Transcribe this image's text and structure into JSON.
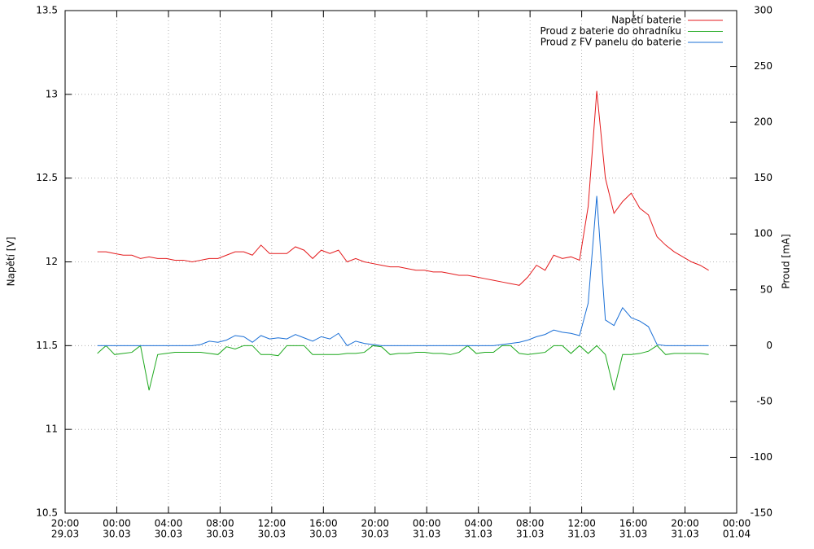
{
  "chart_data": {
    "type": "line",
    "ylabel": "Napětí [V]",
    "y2label": "Proud [mA]",
    "xlim": [
      "29.03 20:00",
      "01.04 00:00"
    ],
    "xticks": [
      {
        "value": "29.03 20:00",
        "label": [
          "20:00",
          "29.03"
        ]
      },
      {
        "value": "30.03 00:00",
        "label": [
          "00:00",
          "30.03"
        ]
      },
      {
        "value": "30.03 04:00",
        "label": [
          "04:00",
          "30.03"
        ]
      },
      {
        "value": "30.03 08:00",
        "label": [
          "08:00",
          "30.03"
        ]
      },
      {
        "value": "30.03 12:00",
        "label": [
          "12:00",
          "30.03"
        ]
      },
      {
        "value": "30.03 16:00",
        "label": [
          "16:00",
          "30.03"
        ]
      },
      {
        "value": "30.03 20:00",
        "label": [
          "20:00",
          "30.03"
        ]
      },
      {
        "value": "31.03 00:00",
        "label": [
          "00:00",
          "31.03"
        ]
      },
      {
        "value": "31.03 04:00",
        "label": [
          "04:00",
          "31.03"
        ]
      },
      {
        "value": "31.03 08:00",
        "label": [
          "08:00",
          "31.03"
        ]
      },
      {
        "value": "31.03 12:00",
        "label": [
          "12:00",
          "31.03"
        ]
      },
      {
        "value": "31.03 16:00",
        "label": [
          "16:00",
          "31.03"
        ]
      },
      {
        "value": "31.03 20:00",
        "label": [
          "20:00",
          "31.03"
        ]
      },
      {
        "value": "01.04 00:00",
        "label": [
          "00:00",
          "01.04"
        ]
      }
    ],
    "ylim": [
      10.5,
      13.5
    ],
    "yticks": [
      10.5,
      11,
      11.5,
      12,
      12.5,
      13,
      13.5
    ],
    "y2lim": [
      -150,
      300
    ],
    "y2ticks": [
      -150,
      -100,
      -50,
      0,
      50,
      100,
      150,
      200,
      250,
      300
    ],
    "grid": true,
    "x": [
      "29.03 22:30",
      "29.03 23:10",
      "29.03 23:50",
      "30.03 00:30",
      "30.03 01:10",
      "30.03 01:50",
      "30.03 02:30",
      "30.03 03:10",
      "30.03 03:50",
      "30.03 04:30",
      "30.03 05:10",
      "30.03 05:50",
      "30.03 06:30",
      "30.03 07:10",
      "30.03 07:50",
      "30.03 08:30",
      "30.03 09:10",
      "30.03 09:50",
      "30.03 10:30",
      "30.03 11:10",
      "30.03 11:50",
      "30.03 12:30",
      "30.03 13:10",
      "30.03 13:50",
      "30.03 14:30",
      "30.03 15:10",
      "30.03 15:50",
      "30.03 16:30",
      "30.03 17:10",
      "30.03 17:50",
      "30.03 18:30",
      "30.03 19:10",
      "30.03 19:50",
      "30.03 20:30",
      "30.03 21:10",
      "30.03 21:50",
      "30.03 22:30",
      "30.03 23:10",
      "30.03 23:50",
      "31.03 00:30",
      "31.03 01:10",
      "31.03 01:50",
      "31.03 02:30",
      "31.03 03:10",
      "31.03 03:50",
      "31.03 04:30",
      "31.03 05:10",
      "31.03 05:50",
      "31.03 06:30",
      "31.03 07:10",
      "31.03 07:50",
      "31.03 08:30",
      "31.03 09:10",
      "31.03 09:50",
      "31.03 10:30",
      "31.03 11:10",
      "31.03 11:50",
      "31.03 12:30",
      "31.03 13:10",
      "31.03 13:50",
      "31.03 14:30",
      "31.03 15:10",
      "31.03 15:50",
      "31.03 16:30",
      "31.03 17:10",
      "31.03 17:50",
      "31.03 18:30",
      "31.03 19:10",
      "31.03 19:50",
      "31.03 20:30",
      "31.03 21:10",
      "31.03 21:50"
    ],
    "series": [
      {
        "name": "Napětí baterie",
        "color": "#e41a1c",
        "axis": "y",
        "values": [
          12.06,
          12.06,
          12.05,
          12.04,
          12.04,
          12.02,
          12.03,
          12.02,
          12.02,
          12.01,
          12.01,
          12.0,
          12.01,
          12.02,
          12.02,
          12.04,
          12.06,
          12.06,
          12.04,
          12.1,
          12.05,
          12.05,
          12.05,
          12.09,
          12.07,
          12.02,
          12.07,
          12.05,
          12.07,
          12.0,
          12.02,
          12.0,
          11.99,
          11.98,
          11.97,
          11.97,
          11.96,
          11.95,
          11.95,
          11.94,
          11.94,
          11.93,
          11.92,
          11.92,
          11.91,
          11.9,
          11.89,
          11.88,
          11.87,
          11.86,
          11.91,
          11.98,
          11.95,
          12.04,
          12.02,
          12.03,
          12.01,
          12.33,
          13.02,
          12.5,
          12.29,
          12.36,
          12.41,
          12.32,
          12.28,
          12.15,
          12.1,
          12.06,
          12.03,
          12.0,
          11.98,
          11.95
        ]
      },
      {
        "name": "Proud z baterie do ohradníku",
        "color": "#1ca81c",
        "axis": "y2",
        "values": [
          -7,
          0,
          -8,
          -7,
          -6,
          0,
          -40,
          -8,
          -7,
          -6,
          -6,
          -6,
          -6,
          -7,
          -8,
          -1,
          -3,
          0,
          0,
          -8,
          -8,
          -9,
          0,
          0,
          0,
          -8,
          -8,
          -8,
          -8,
          -7,
          -7,
          -6,
          0,
          -1,
          -8,
          -7,
          -7,
          -6,
          -6,
          -7,
          -7,
          -8,
          -6,
          0,
          -7,
          -6,
          -6,
          0,
          0,
          -7,
          -8,
          -7,
          -6,
          0,
          0,
          -7,
          0,
          -7,
          0,
          -8,
          -40,
          -8,
          -8,
          -7,
          -5,
          0,
          -8,
          -7,
          -7,
          -7,
          -7,
          -8
        ]
      },
      {
        "name": "Proud z FV panelu do baterie",
        "color": "#1a6fd6",
        "axis": "y2",
        "values": [
          0,
          0,
          0,
          0,
          0,
          0,
          0,
          0,
          0,
          0,
          0,
          0,
          1,
          4,
          3,
          5,
          9,
          8,
          3,
          9,
          6,
          7,
          6,
          10,
          7,
          4,
          8,
          6,
          11,
          0,
          4,
          2,
          1,
          0,
          0,
          0,
          0,
          0,
          0,
          0,
          0,
          0,
          0,
          0,
          0,
          0,
          0,
          1,
          2,
          3,
          5,
          8,
          10,
          14,
          12,
          11,
          9,
          38,
          134,
          23,
          18,
          34,
          25,
          22,
          17,
          1,
          0,
          0,
          0,
          0,
          0,
          0
        ]
      }
    ]
  }
}
